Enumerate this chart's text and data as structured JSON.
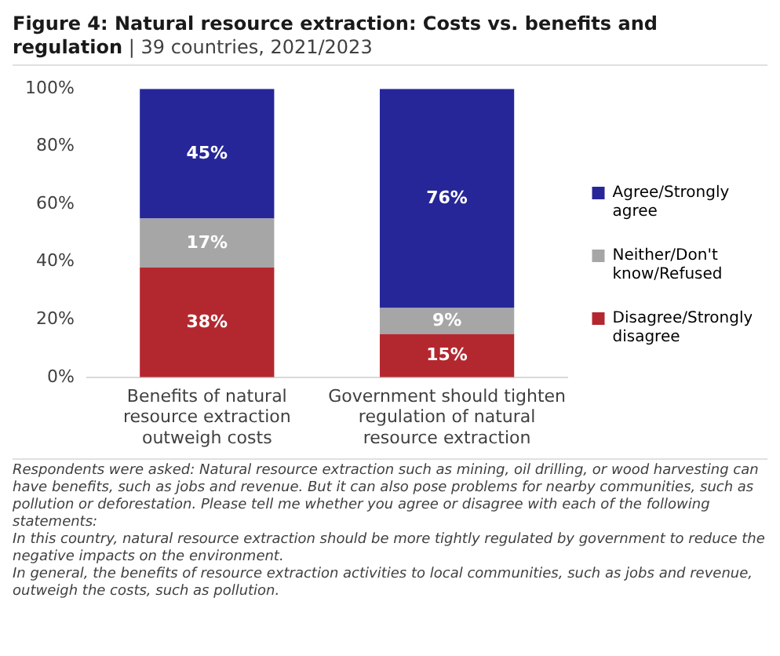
{
  "chart_data": {
    "type": "bar",
    "stacked": true,
    "title": "Figure 4: Natural resource extraction: Costs vs. benefits and regulation",
    "subtitle": "| 39 countries, 2021/2023",
    "categories": [
      "Benefits of natural resource extraction outweigh costs",
      "Government should tighten regulation of natural resource extraction"
    ],
    "series": [
      {
        "name": "Disagree/Strongly disagree",
        "color": "#b3282f",
        "values": [
          38,
          15
        ],
        "value_labels": [
          "38%",
          "15%"
        ]
      },
      {
        "name": "Neither/Don't know/Refused",
        "color": "#a6a6a6",
        "values": [
          17,
          9
        ],
        "value_labels": [
          "17%",
          "9%"
        ]
      },
      {
        "name": "Agree/Strongly agree",
        "color": "#262699",
        "values": [
          45,
          76
        ],
        "value_labels": [
          "45%",
          "76%"
        ]
      }
    ],
    "ylim": [
      0,
      100
    ],
    "yticks": [
      {
        "value": 0,
        "label": "0%"
      },
      {
        "value": 20,
        "label": "20%"
      },
      {
        "value": 40,
        "label": "40%"
      },
      {
        "value": 60,
        "label": "60%"
      },
      {
        "value": 80,
        "label": "80%"
      },
      {
        "value": 100,
        "label": "100%"
      }
    ],
    "grid": false,
    "legend": "right",
    "annotations": [
      "Respondents were asked: Natural resource extraction such as mining, oil drilling, or wood harvesting can have benefits, such as jobs and revenue. But it can also pose problems for nearby communities, such as pollution or deforestation. Please tell me whether you agree or disagree with each of the following statements:",
      "In this country, natural resource extraction should be more tightly regulated by government to reduce the negative impacts on the environment.",
      "In general, the benefits of resource extraction activities to local communities, such as jobs and revenue, outweigh the costs, such as pollution."
    ]
  }
}
